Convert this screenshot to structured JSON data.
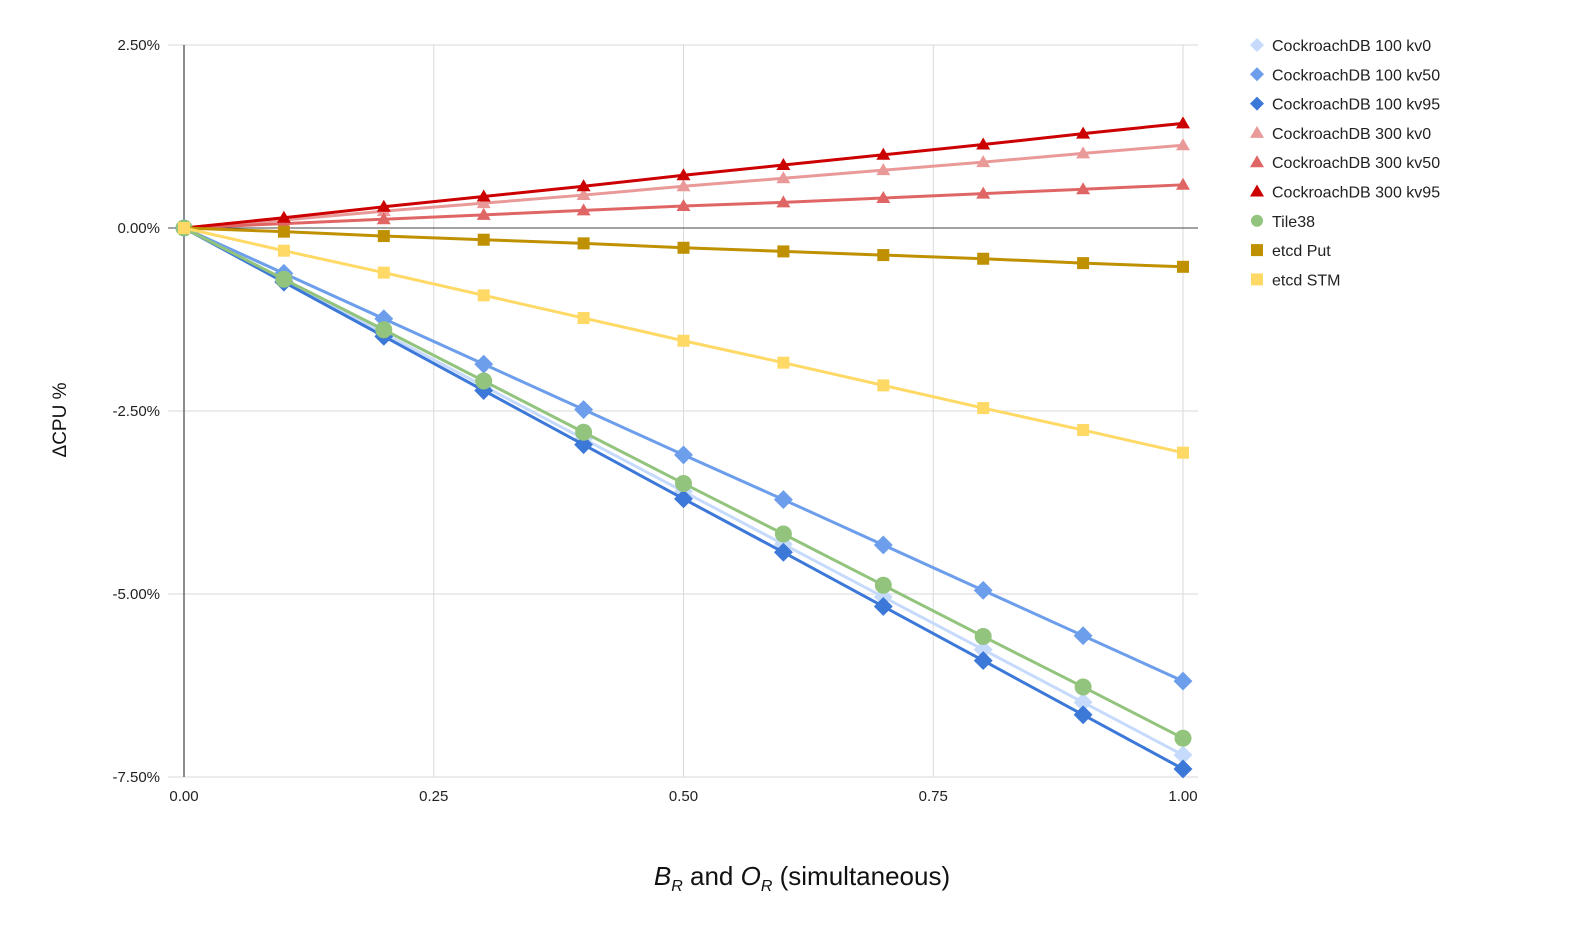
{
  "chart_data": {
    "type": "line",
    "title": "",
    "xlabel": {
      "b": "B",
      "b_sub": "R",
      "and": " and ",
      "o": "O",
      "o_sub": "R",
      "rest": " (simultaneous)"
    },
    "ylabel": "ΔCPU %",
    "xlim": [
      0,
      1
    ],
    "ylim": [
      -7.5,
      2.5
    ],
    "x_ticks": [
      0,
      0.25,
      0.5,
      0.75,
      1.0
    ],
    "x_tick_labels": [
      "0.00",
      "0.25",
      "0.50",
      "0.75",
      "1.00"
    ],
    "y_ticks": [
      2.5,
      0,
      -2.5,
      -5,
      -7.5
    ],
    "y_tick_labels": [
      "2.50%",
      "0.00%",
      "-2.50%",
      "-5.00%",
      "-7.50%"
    ],
    "grid": true,
    "legend_position": "right",
    "x": [
      0,
      0.1,
      0.2,
      0.3,
      0.4,
      0.5,
      0.6,
      0.7,
      0.8,
      0.9,
      1.0
    ],
    "series": [
      {
        "name": "CockroachDB 100 kv0",
        "color": "#c6dafc",
        "marker": "diamond",
        "values": [
          0,
          -0.72,
          -1.44,
          -2.16,
          -2.88,
          -3.6,
          -4.32,
          -5.04,
          -5.76,
          -6.48,
          -7.2
        ]
      },
      {
        "name": "CockroachDB 100 kv50",
        "color": "#6d9eeb",
        "marker": "diamond",
        "values": [
          0,
          -0.62,
          -1.24,
          -1.86,
          -2.48,
          -3.1,
          -3.71,
          -4.33,
          -4.95,
          -5.57,
          -6.19
        ]
      },
      {
        "name": "CockroachDB 100 kv95",
        "color": "#3c78d8",
        "marker": "diamond",
        "values": [
          0,
          -0.74,
          -1.48,
          -2.22,
          -2.96,
          -3.7,
          -4.43,
          -5.17,
          -5.91,
          -6.65,
          -7.39
        ]
      },
      {
        "name": "CockroachDB 300 kv0",
        "color": "#ea9999",
        "marker": "triangle",
        "values": [
          0,
          0.11,
          0.23,
          0.34,
          0.45,
          0.57,
          0.68,
          0.79,
          0.9,
          1.02,
          1.13
        ]
      },
      {
        "name": "CockroachDB 300 kv50",
        "color": "#e06666",
        "marker": "triangle",
        "values": [
          0,
          0.06,
          0.12,
          0.18,
          0.24,
          0.3,
          0.35,
          0.41,
          0.47,
          0.53,
          0.59
        ]
      },
      {
        "name": "CockroachDB 300 kv95",
        "color": "#cc0000",
        "marker": "triangle",
        "values": [
          0,
          0.14,
          0.29,
          0.43,
          0.57,
          0.72,
          0.86,
          1.0,
          1.14,
          1.29,
          1.43
        ]
      },
      {
        "name": "Tile38",
        "color": "#93c47d",
        "marker": "circle",
        "values": [
          0,
          -0.7,
          -1.39,
          -2.09,
          -2.79,
          -3.49,
          -4.18,
          -4.88,
          -5.58,
          -6.27,
          -6.97
        ]
      },
      {
        "name": "etcd Put",
        "color": "#bf9000",
        "marker": "square",
        "values": [
          0,
          -0.05,
          -0.11,
          -0.16,
          -0.21,
          -0.27,
          -0.32,
          -0.37,
          -0.42,
          -0.48,
          -0.53
        ]
      },
      {
        "name": "etcd STM",
        "color": "#ffd966",
        "marker": "square",
        "values": [
          0,
          -0.31,
          -0.61,
          -0.92,
          -1.23,
          -1.54,
          -1.84,
          -2.15,
          -2.46,
          -2.76,
          -3.07
        ]
      }
    ]
  }
}
